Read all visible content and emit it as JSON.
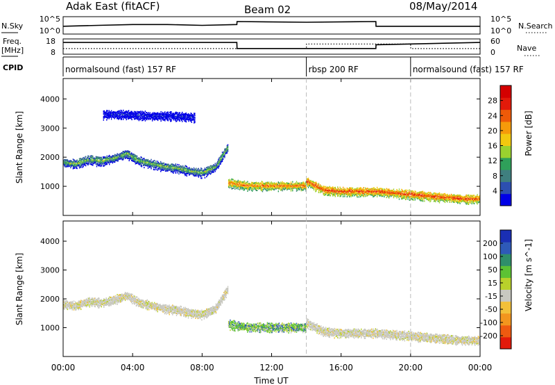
{
  "header": {
    "station": "Adak East (fitACF)",
    "beam": "Beam 02",
    "date": "08/May/2014"
  },
  "noise_panel": {
    "left_label": "N.Sky",
    "right_label": "N.Search",
    "left_ticks": [
      "10^5",
      "10^0"
    ],
    "right_ticks": [
      "10^5",
      "10^0"
    ]
  },
  "freq_panel": {
    "left_label_1": "Freq.",
    "left_label_2": "[MHz]",
    "right_label": "Nave",
    "left_ticks": [
      "18",
      "8"
    ],
    "right_ticks": [
      "60",
      "0"
    ]
  },
  "cpid_panel": {
    "label": "CPID",
    "segments": [
      {
        "text": "normalsound (fast) 157 RF",
        "start_hour": 0,
        "end_hour": 14
      },
      {
        "text": "rbsp 200 RF",
        "start_hour": 14,
        "end_hour": 20
      },
      {
        "text": "normalsound (fast) 157 RF",
        "start_hour": 20,
        "end_hour": 24
      }
    ]
  },
  "power_panel": {
    "ylabel": "Slant Range [km]",
    "yticks": [
      "1000",
      "2000",
      "3000",
      "4000"
    ],
    "colorbar_title": "Power [dB]",
    "colorbar_ticks": [
      "4",
      "8",
      "12",
      "16",
      "20",
      "24",
      "28"
    ],
    "colors": [
      "#0000e6",
      "#2d4fb0",
      "#3f7f7f",
      "#2fa05a",
      "#9ad12f",
      "#f2c80f",
      "#f59a0a",
      "#ee5a08",
      "#e21a0a",
      "#d40000"
    ]
  },
  "velocity_panel": {
    "ylabel": "Slant Range [km]",
    "yticks": [
      "1000",
      "2000",
      "3000",
      "4000"
    ],
    "colorbar_title": "Velocity [m s^-1]",
    "colorbar_ticks": [
      "200",
      "100",
      "50",
      "15",
      "-15",
      "-50",
      "-100",
      "-200"
    ],
    "colors": [
      "#1a2fb4",
      "#2e5ab8",
      "#2f8f6a",
      "#5cc234",
      "#b9d12b",
      "#c8c8c0",
      "#f2c03a",
      "#f2951e",
      "#ee5a10",
      "#e21a0a"
    ]
  },
  "x_axis": {
    "ticks": [
      "00:00",
      "04:00",
      "08:00",
      "12:00",
      "16:00",
      "20:00",
      "00:00"
    ],
    "label": "Time UT"
  },
  "chart_data": [
    {
      "type": "line",
      "panel": "noise",
      "xlabel": "",
      "ylabel": "N.Sky",
      "series": [
        {
          "name": "N.Sky",
          "x": [
            0,
            2,
            4,
            6,
            8,
            10,
            10.01,
            14,
            18,
            18.01,
            22,
            24
          ],
          "values": [
            0.45,
            0.5,
            0.55,
            0.55,
            0.5,
            0.55,
            0.72,
            0.68,
            0.72,
            0.45,
            0.45,
            0.45
          ]
        }
      ]
    },
    {
      "type": "line",
      "panel": "freq",
      "xlabel": "",
      "ylabel": "Freq. [MHz]",
      "series": [
        {
          "name": "Freq",
          "x": [
            0,
            10,
            10.01,
            18,
            18.01,
            24
          ],
          "values": [
            15.2,
            15.2,
            10.5,
            10.5,
            13.4,
            15.2
          ]
        },
        {
          "name": "Nave",
          "x": [
            0,
            14,
            14.01,
            20,
            20.01,
            24
          ],
          "values": [
            22,
            22,
            40,
            40,
            22,
            22
          ]
        }
      ]
    },
    {
      "type": "heatmap",
      "panel": "power",
      "title": "",
      "xlabel": "",
      "ylabel": "Slant Range [km]",
      "xlim": [
        0,
        24
      ],
      "ylim": [
        0,
        4700
      ],
      "value_label": "Power [dB]",
      "value_range": [
        4,
        28
      ],
      "echo_bands": [
        {
          "x_start": 0,
          "x_end": 9.5,
          "range_profile": [
            1850,
            1800,
            1950,
            1900,
            2000,
            2150,
            1900,
            1800,
            1700,
            1650,
            1550,
            1500,
            1700,
            2400
          ],
          "power_center": 14
        },
        {
          "x_start": 9.5,
          "x_end": 14,
          "range_profile": [
            1150,
            1050,
            1050,
            1050,
            1050
          ],
          "power_center": 22
        },
        {
          "x_start": 14,
          "x_end": 24,
          "range_profile": [
            1200,
            900,
            850,
            850,
            850,
            800,
            750,
            700,
            650,
            600,
            600
          ],
          "power_center": 24
        },
        {
          "x_start": 2.3,
          "x_end": 7.6,
          "range_profile": [
            3500,
            3500,
            3450,
            3450,
            3400
          ],
          "power_center": 5
        }
      ]
    },
    {
      "type": "heatmap",
      "panel": "velocity",
      "title": "",
      "xlabel": "Time UT",
      "ylabel": "Slant Range [km]",
      "xlim": [
        0,
        24
      ],
      "ylim": [
        0,
        4700
      ],
      "value_label": "Velocity [m s^-1]",
      "value_range": [
        -200,
        200
      ],
      "echo_bands": [
        {
          "x_start": 0,
          "x_end": 9.5,
          "range_profile": [
            1850,
            1800,
            1950,
            1900,
            2000,
            2150,
            1900,
            1800,
            1700,
            1650,
            1550,
            1500,
            1700,
            2400
          ],
          "velocity_center": -5
        },
        {
          "x_start": 9.5,
          "x_end": 14,
          "range_profile": [
            1150,
            1050,
            1050,
            1050,
            1050
          ],
          "velocity_center": 30
        },
        {
          "x_start": 14,
          "x_end": 24,
          "range_profile": [
            1200,
            900,
            850,
            850,
            850,
            800,
            750,
            700,
            650,
            600,
            600
          ],
          "velocity_center": 0
        }
      ]
    }
  ]
}
